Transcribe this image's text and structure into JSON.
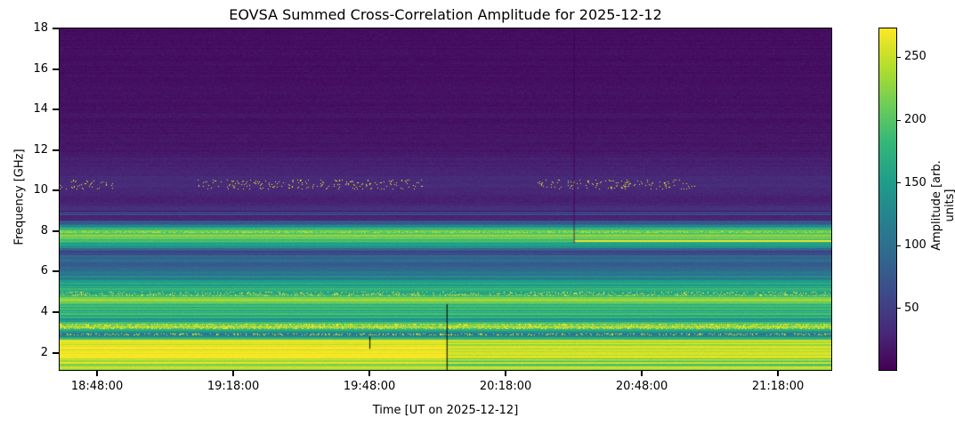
{
  "chart_data": {
    "type": "heatmap",
    "title": "EOVSA Summed Cross-Correlation Amplitude for 2025-12-12",
    "xlabel": "Time [UT on 2025-12-12]",
    "ylabel": "Frequency [GHz]",
    "x_tick_labels": [
      "18:48:00",
      "19:18:00",
      "19:48:00",
      "20:18:00",
      "20:48:00",
      "21:18:00"
    ],
    "xlim": [
      "18:39:45",
      "21:29:45"
    ],
    "y_ticks": [
      2,
      4,
      6,
      8,
      10,
      12,
      14,
      16,
      18
    ],
    "ylim": [
      1.15,
      18
    ],
    "colormap": "viridis",
    "colorbar": {
      "label": "Amplitude [arb. units]",
      "ticks": [
        50,
        100,
        150,
        200,
        250
      ],
      "range": [
        1,
        273
      ]
    },
    "frequency_profile_approx": {
      "frequency_ghz": [
        1.2,
        2.0,
        2.6,
        2.8,
        3.0,
        3.3,
        3.6,
        4.0,
        4.4,
        4.6,
        4.9,
        5.2,
        5.5,
        6.0,
        7.0,
        7.5,
        7.95,
        8.5,
        9.5,
        10.3,
        12,
        14,
        16,
        18
      ],
      "amplitude": [
        230,
        265,
        260,
        130,
        120,
        230,
        150,
        190,
        175,
        250,
        150,
        170,
        140,
        85,
        75,
        200,
        220,
        55,
        25,
        35,
        18,
        14,
        12,
        10
      ]
    },
    "annotations": "RFI speckles near 10.3 GHz, 4.9 GHz, 3.3 GHz; bright line at 7.5 GHz after ~20:33"
  }
}
